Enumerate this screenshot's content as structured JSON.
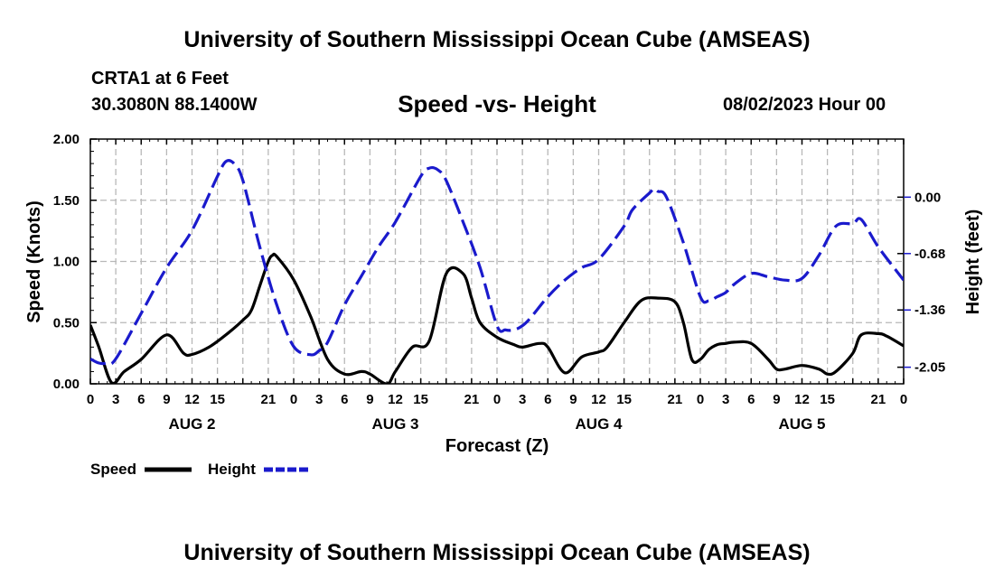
{
  "header": {
    "title": "University of Southern Mississippi Ocean Cube (AMSEAS)",
    "station": "CRTA1 at 6 Feet",
    "coordinates": "30.3080N  88.1400W",
    "run_time": "08/02/2023 Hour 00"
  },
  "footer": {
    "title": "University of Southern Mississippi Ocean Cube (AMSEAS)"
  },
  "chart_data": {
    "type": "line",
    "title": "Speed -vs- Height",
    "xlabel": "Forecast (Z)",
    "ylabel": "Speed (Knots)",
    "y2label": "Height (feet)",
    "xlim": [
      0,
      96
    ],
    "ylim": [
      0,
      2.0
    ],
    "y2lim": [
      -2.25,
      0.7
    ],
    "x_ticks": [
      0,
      3,
      6,
      9,
      12,
      15,
      18,
      21,
      24,
      27,
      30,
      33,
      36,
      39,
      42,
      45,
      48,
      51,
      54,
      57,
      60,
      63,
      66,
      69,
      72,
      75,
      78,
      81,
      84,
      87,
      90,
      93,
      96
    ],
    "x_tick_labels": [
      "0",
      "3",
      "6",
      "9",
      "12",
      "15",
      "21",
      "0",
      "3",
      "6",
      "9",
      "12",
      "15",
      "21",
      "0",
      "3",
      "6",
      "9",
      "12",
      "15",
      "21",
      "0",
      "3",
      "6",
      "9",
      "12",
      "15",
      "21",
      "0"
    ],
    "x_tick_label_hours": [
      0,
      3,
      6,
      9,
      12,
      15,
      21,
      24,
      27,
      30,
      33,
      36,
      39,
      45,
      48,
      51,
      54,
      57,
      60,
      63,
      69,
      72,
      75,
      78,
      81,
      84,
      87,
      93,
      96
    ],
    "day_labels": [
      {
        "label": "AUG 2",
        "hour": 12
      },
      {
        "label": "AUG 3",
        "hour": 36
      },
      {
        "label": "AUG 4",
        "hour": 60
      },
      {
        "label": "AUG 5",
        "hour": 84
      }
    ],
    "y_ticks": [
      0.0,
      0.5,
      1.0,
      1.5,
      2.0
    ],
    "y_tick_labels": [
      "0.00",
      "0.50",
      "1.00",
      "1.50",
      "2.00"
    ],
    "y2_ticks": [
      0.0,
      -0.68,
      -1.36,
      -2.05
    ],
    "y2_tick_labels": [
      "0.00",
      "-0.68",
      "-1.36",
      "-2.05"
    ],
    "grid": true,
    "legend": {
      "placement": "bottom-left"
    },
    "series": [
      {
        "name": "Speed",
        "axis": "left",
        "color": "#000000",
        "style": "solid",
        "x": [
          0,
          1,
          2.5,
          4,
          6,
          9,
          11,
          12,
          14,
          16,
          18,
          19,
          20,
          21,
          21.5,
          22,
          24,
          26,
          28,
          30,
          32,
          33,
          35,
          36,
          38,
          40,
          42,
          44,
          45,
          46,
          48,
          50,
          51,
          53,
          54,
          56,
          58,
          60,
          61,
          63,
          65,
          67,
          69,
          70,
          71,
          72,
          73,
          74,
          75,
          76,
          78,
          80,
          81,
          82,
          84,
          86,
          87,
          88,
          90,
          91,
          93,
          94,
          96
        ],
        "values": [
          0.48,
          0.3,
          0.01,
          0.1,
          0.2,
          0.4,
          0.25,
          0.24,
          0.3,
          0.4,
          0.52,
          0.6,
          0.8,
          1.0,
          1.05,
          1.04,
          0.85,
          0.55,
          0.2,
          0.08,
          0.1,
          0.08,
          0.0,
          0.1,
          0.3,
          0.35,
          0.9,
          0.9,
          0.7,
          0.5,
          0.38,
          0.32,
          0.3,
          0.33,
          0.3,
          0.09,
          0.22,
          0.26,
          0.3,
          0.5,
          0.68,
          0.7,
          0.67,
          0.5,
          0.2,
          0.2,
          0.28,
          0.32,
          0.33,
          0.34,
          0.33,
          0.2,
          0.12,
          0.12,
          0.15,
          0.12,
          0.08,
          0.1,
          0.25,
          0.4,
          0.41,
          0.39,
          0.31
        ]
      },
      {
        "name": "Height",
        "axis": "right",
        "color": "#1a1acc",
        "style": "dashed",
        "x": [
          0,
          1,
          2,
          3,
          6,
          9,
          12,
          15,
          16,
          17,
          18,
          20,
          22,
          24,
          26,
          27,
          28,
          30,
          32,
          34,
          36,
          39,
          40,
          41,
          42,
          44,
          46,
          48,
          49,
          50,
          51,
          52,
          54,
          56,
          58,
          60,
          63,
          64,
          66,
          66.5,
          67,
          68,
          70,
          72,
          73,
          74,
          75,
          76,
          78,
          80,
          82,
          84,
          86,
          88,
          90,
          91,
          93,
          96
        ],
        "values": [
          -1.95,
          -2.0,
          -2.0,
          -1.95,
          -1.4,
          -0.85,
          -0.4,
          0.25,
          0.43,
          0.4,
          0.2,
          -0.6,
          -1.3,
          -1.8,
          -1.9,
          -1.85,
          -1.75,
          -1.3,
          -0.95,
          -0.6,
          -0.3,
          0.25,
          0.35,
          0.33,
          0.2,
          -0.3,
          -0.85,
          -1.55,
          -1.6,
          -1.6,
          -1.55,
          -1.45,
          -1.2,
          -1.0,
          -0.85,
          -0.75,
          -0.35,
          -0.15,
          0.05,
          0.1,
          0.07,
          0.0,
          -0.55,
          -1.2,
          -1.25,
          -1.2,
          -1.15,
          -1.05,
          -0.92,
          -0.96,
          -1.0,
          -0.98,
          -0.7,
          -0.35,
          -0.32,
          -0.27,
          -0.6,
          -1.0
        ]
      }
    ]
  }
}
